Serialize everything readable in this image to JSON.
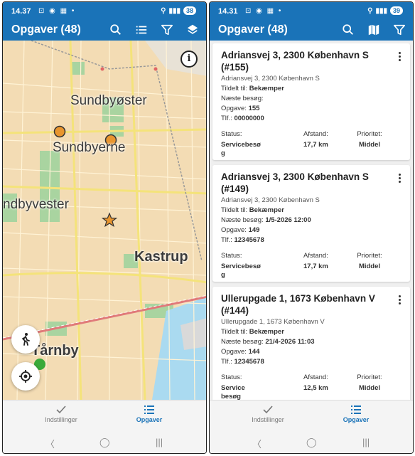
{
  "left": {
    "status": {
      "time": "14.37",
      "battery": "38"
    },
    "title": "Opgaver (48)",
    "map_labels": [
      "Sundbyøster",
      "Sundbyerne",
      "ndbyvester",
      "Kastrup",
      "Tårnby"
    ],
    "info_label": "i",
    "nav": {
      "settings": "Indstillinger",
      "tasks": "Opgaver"
    }
  },
  "right": {
    "status": {
      "time": "14.31",
      "battery": "39"
    },
    "title": "Opgaver (48)",
    "labels": {
      "assigned": "Tildelt til:",
      "next_visit": "Næste besøg:",
      "task": "Opgave:",
      "phone": "Tlf.:",
      "status": "Status:",
      "distance": "Afstand:",
      "priority": "Prioritet:"
    },
    "cards": [
      {
        "title": "Adriansvej 3, 2300 København S (#155)",
        "address": "Adriansvej 3, 2300 København S",
        "assigned": "Bekæmper",
        "next_visit": "",
        "task": "155",
        "phone": "00000000",
        "status_lines": [
          "Servicebesø",
          "g"
        ],
        "distance": "17,7 km",
        "priority": "Middel"
      },
      {
        "title": "Adriansvej 3, 2300 København S (#149)",
        "address": "Adriansvej 3, 2300 København S",
        "assigned": "Bekæmper",
        "next_visit": "1/5-2026 12:00",
        "task": "149",
        "phone": "12345678",
        "status_lines": [
          "Servicebesø",
          "g"
        ],
        "distance": "17,7 km",
        "priority": "Middel"
      },
      {
        "title": "Ullerupgade 1, 1673 København V (#144)",
        "address": "Ullerupgade 1, 1673 København V",
        "assigned": "Bekæmper",
        "next_visit": "21/4-2026 11:03",
        "task": "144",
        "phone": "12345678",
        "status_lines": [
          "Service",
          "besøg"
        ],
        "distance": "12,5 km",
        "priority": "Middel"
      }
    ],
    "nav": {
      "settings": "Indstillinger",
      "tasks": "Opgaver"
    }
  },
  "colors": {
    "primary": "#1a73b8",
    "marker_orange": "#e8952e",
    "map_land": "#f3dcb4",
    "green_dot": "#3aaa3a"
  },
  "icons": [
    "search-icon",
    "list-icon",
    "filter-icon",
    "layers-icon",
    "map-icon",
    "info-icon",
    "walk-icon",
    "locate-icon",
    "check-icon",
    "list-nav-icon",
    "kebab-icon"
  ]
}
